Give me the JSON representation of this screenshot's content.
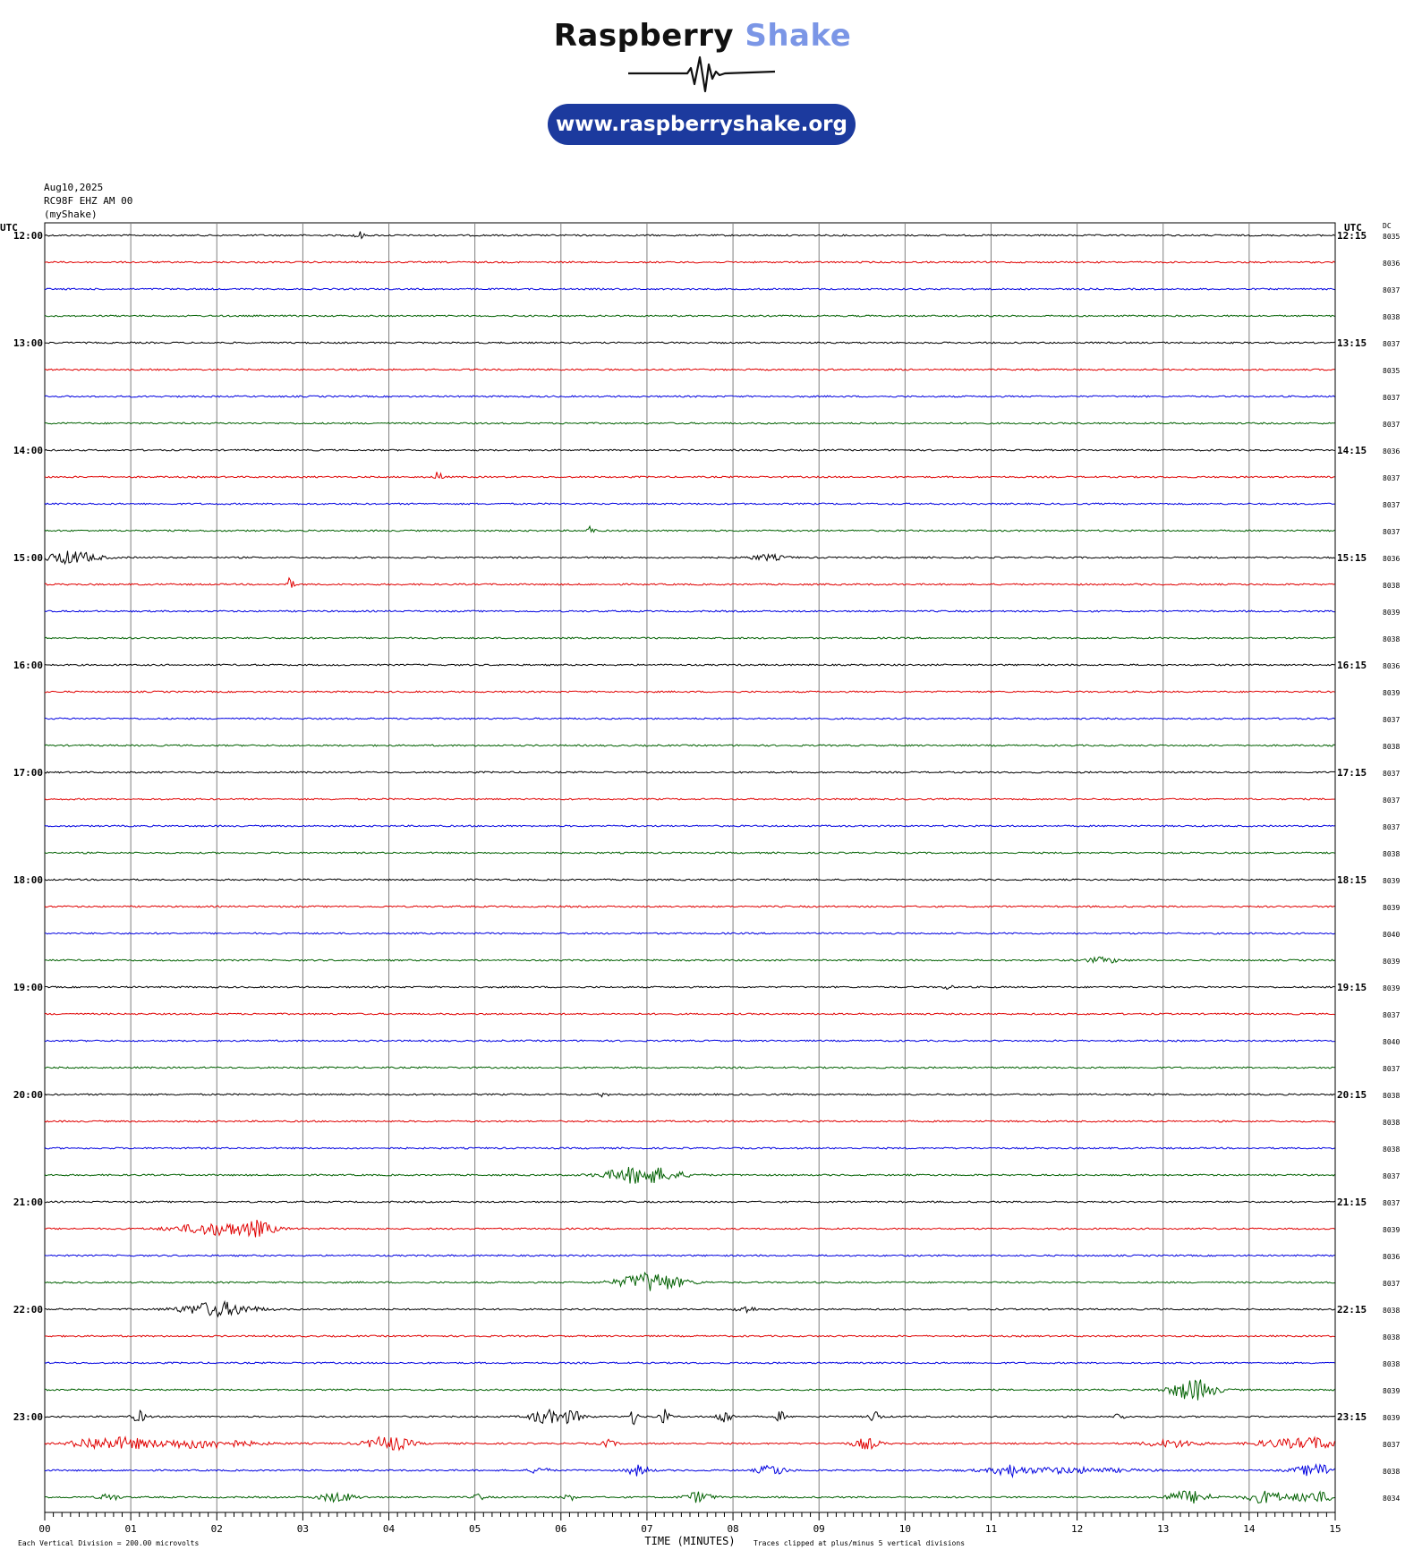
{
  "logo": {
    "name_part1": "Raspberry",
    "name_part2": "Shake",
    "url": "www.raspberryshake.org",
    "pill_color": "#1c3a9e",
    "accent_color": "#7b96e6"
  },
  "header": {
    "date": "Aug10,2025",
    "station": "RC98F EHZ AM 00",
    "network": "(myShake)"
  },
  "chart_data": {
    "type": "line",
    "subtype": "helicorder",
    "left_axis_header": "UTC",
    "right_axis_header": "UTC",
    "dc_header": "DC",
    "hour_labels_left": [
      "12:00",
      "13:00",
      "14:00",
      "15:00",
      "16:00",
      "17:00",
      "18:00",
      "19:00",
      "20:00",
      "21:00",
      "22:00",
      "23:00"
    ],
    "hour_labels_right": [
      "12:15",
      "13:15",
      "14:15",
      "15:15",
      "16:15",
      "17:15",
      "18:15",
      "19:15",
      "20:15",
      "21:15",
      "22:15",
      "23:15"
    ],
    "x_ticks": [
      "00",
      "01",
      "02",
      "03",
      "04",
      "05",
      "06",
      "07",
      "08",
      "09",
      "10",
      "11",
      "12",
      "13",
      "14",
      "15"
    ],
    "xlabel": "TIME (MINUTES)",
    "xlim": [
      0,
      15
    ],
    "rows_per_hour": 4,
    "trace_colors": [
      "#000000",
      "#e00000",
      "#0000e0",
      "#006000"
    ],
    "dc_values": [
      "8035",
      "8036",
      "8037",
      "8038",
      "8037",
      "8035",
      "8037",
      "8037",
      "8036",
      "8037",
      "8037",
      "8037",
      "8036",
      "8038",
      "8039",
      "8038",
      "8036",
      "8039",
      "8037",
      "8038",
      "8037",
      "8037",
      "8037",
      "8038",
      "8039",
      "8039",
      "8040",
      "8039",
      "8039",
      "8037",
      "8040",
      "8037",
      "8038",
      "8038",
      "8038",
      "8037",
      "8037",
      "8039",
      "8036",
      "8037",
      "8038",
      "8038",
      "8038",
      "8039",
      "8039",
      "8037",
      "8038",
      "8034"
    ],
    "footer_left": "Each Vertical Division =  200.00 microvolts",
    "footer_right": "Traces clipped at plus/minus 5 vertical divisions",
    "events": [
      {
        "row": 0,
        "minute": 3.65,
        "amp": 5,
        "width": 0.05
      },
      {
        "row": 9,
        "minute": 4.58,
        "amp": 8,
        "width": 0.04
      },
      {
        "row": 11,
        "minute": 6.35,
        "amp": 6,
        "width": 0.04
      },
      {
        "row": 12,
        "minute": 0.3,
        "amp": 7,
        "width": 0.3
      },
      {
        "row": 12,
        "minute": 8.4,
        "amp": 3,
        "width": 0.2
      },
      {
        "row": 13,
        "minute": 2.85,
        "amp": 7,
        "width": 0.04
      },
      {
        "row": 27,
        "minute": 12.3,
        "amp": 3,
        "width": 0.2
      },
      {
        "row": 28,
        "minute": 10.5,
        "amp": 4,
        "width": 0.04
      },
      {
        "row": 32,
        "minute": 6.5,
        "amp": 4,
        "width": 0.04
      },
      {
        "row": 35,
        "minute": 6.95,
        "amp": 10,
        "width": 0.4
      },
      {
        "row": 37,
        "minute": 2.05,
        "amp": 7,
        "width": 0.5
      },
      {
        "row": 37,
        "minute": 2.5,
        "amp": 6,
        "width": 0.15
      },
      {
        "row": 39,
        "minute": 7.05,
        "amp": 11,
        "width": 0.35
      },
      {
        "row": 40,
        "minute": 2.0,
        "amp": 8,
        "width": 0.4
      },
      {
        "row": 40,
        "minute": 8.15,
        "amp": 4,
        "width": 0.1
      },
      {
        "row": 43,
        "minute": 13.35,
        "amp": 12,
        "width": 0.25
      },
      {
        "row": 44,
        "minute": 1.1,
        "amp": 6,
        "width": 0.08
      },
      {
        "row": 44,
        "minute": 5.8,
        "amp": 8,
        "width": 0.15
      },
      {
        "row": 44,
        "minute": 6.1,
        "amp": 7,
        "width": 0.15
      },
      {
        "row": 44,
        "minute": 6.85,
        "amp": 9,
        "width": 0.04
      },
      {
        "row": 44,
        "minute": 7.2,
        "amp": 8,
        "width": 0.06
      },
      {
        "row": 44,
        "minute": 7.9,
        "amp": 8,
        "width": 0.08
      },
      {
        "row": 44,
        "minute": 8.55,
        "amp": 6,
        "width": 0.05
      },
      {
        "row": 44,
        "minute": 9.65,
        "amp": 7,
        "width": 0.06
      },
      {
        "row": 44,
        "minute": 12.5,
        "amp": 5,
        "width": 0.05
      },
      {
        "row": 45,
        "minute": 0.5,
        "amp": 5,
        "width": 0.2
      },
      {
        "row": 45,
        "minute": 0.9,
        "amp": 6,
        "width": 0.3
      },
      {
        "row": 45,
        "minute": 1.8,
        "amp": 5,
        "width": 0.6
      },
      {
        "row": 45,
        "minute": 4.0,
        "amp": 8,
        "width": 0.25
      },
      {
        "row": 45,
        "minute": 6.55,
        "amp": 4,
        "width": 0.08
      },
      {
        "row": 45,
        "minute": 9.55,
        "amp": 6,
        "width": 0.15
      },
      {
        "row": 45,
        "minute": 13.1,
        "amp": 4,
        "width": 0.3
      },
      {
        "row": 45,
        "minute": 14.35,
        "amp": 4,
        "width": 0.3
      },
      {
        "row": 45,
        "minute": 14.8,
        "amp": 6,
        "width": 0.25
      },
      {
        "row": 46,
        "minute": 5.75,
        "amp": 4,
        "width": 0.1
      },
      {
        "row": 46,
        "minute": 6.9,
        "amp": 6,
        "width": 0.12
      },
      {
        "row": 46,
        "minute": 8.45,
        "amp": 6,
        "width": 0.15
      },
      {
        "row": 46,
        "minute": 11.2,
        "amp": 5,
        "width": 0.15
      },
      {
        "row": 46,
        "minute": 11.8,
        "amp": 3,
        "width": 0.8
      },
      {
        "row": 46,
        "minute": 14.8,
        "amp": 7,
        "width": 0.25
      },
      {
        "row": 47,
        "minute": 0.75,
        "amp": 4,
        "width": 0.1
      },
      {
        "row": 47,
        "minute": 3.4,
        "amp": 5,
        "width": 0.2
      },
      {
        "row": 47,
        "minute": 5.05,
        "amp": 4,
        "width": 0.06
      },
      {
        "row": 47,
        "minute": 6.1,
        "amp": 4,
        "width": 0.06
      },
      {
        "row": 47,
        "minute": 7.6,
        "amp": 6,
        "width": 0.15
      },
      {
        "row": 47,
        "minute": 13.3,
        "amp": 7,
        "width": 0.25
      },
      {
        "row": 47,
        "minute": 14.2,
        "amp": 7,
        "width": 0.2
      },
      {
        "row": 47,
        "minute": 14.75,
        "amp": 6,
        "width": 0.25
      }
    ]
  }
}
